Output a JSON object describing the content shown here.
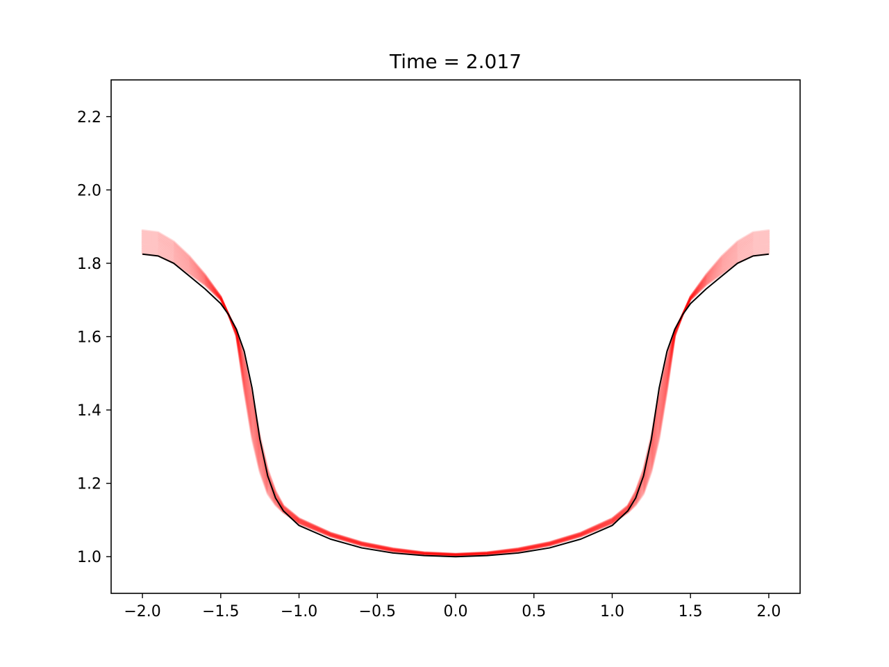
{
  "chart_data": {
    "type": "line",
    "title": "Time = 2.017",
    "xlabel": "",
    "ylabel": "",
    "xlim": [
      -2.2,
      2.2
    ],
    "ylim": [
      0.9,
      2.3
    ],
    "x_ticks": [
      -2.0,
      -1.5,
      -1.0,
      -0.5,
      0.0,
      0.5,
      1.0,
      1.5,
      2.0
    ],
    "x_tick_labels": [
      "−2.0",
      "−1.5",
      "−1.0",
      "−0.5",
      "0.0",
      "0.5",
      "1.0",
      "1.5",
      "2.0"
    ],
    "y_ticks": [
      1.0,
      1.2,
      1.4,
      1.6,
      1.8,
      2.0,
      2.2
    ],
    "y_tick_labels": [
      "1.0",
      "1.2",
      "1.4",
      "1.6",
      "1.8",
      "2.0",
      "2.2"
    ],
    "grid": false,
    "legend": "none",
    "colors": {
      "ensemble": "#ff0000",
      "reference": "#000000"
    },
    "series": [
      {
        "role": "ensemble-band",
        "color": "#ff0000",
        "x": [
          -2.0,
          -1.9,
          -1.8,
          -1.7,
          -1.6,
          -1.5,
          -1.45,
          -1.4,
          -1.35,
          -1.3,
          -1.25,
          -1.2,
          -1.15,
          -1.1,
          -1.0,
          -0.8,
          -0.6,
          -0.4,
          -0.2,
          0.0,
          0.2,
          0.4,
          0.6,
          0.8,
          1.0,
          1.1,
          1.15,
          1.2,
          1.25,
          1.3,
          1.35,
          1.4,
          1.45,
          1.5,
          1.6,
          1.7,
          1.8,
          1.9,
          2.0
        ],
        "upper": [
          1.89,
          1.885,
          1.86,
          1.82,
          1.77,
          1.71,
          1.66,
          1.62,
          1.55,
          1.45,
          1.33,
          1.24,
          1.18,
          1.14,
          1.105,
          1.066,
          1.04,
          1.023,
          1.012,
          1.008,
          1.012,
          1.023,
          1.04,
          1.066,
          1.105,
          1.14,
          1.18,
          1.24,
          1.33,
          1.45,
          1.55,
          1.62,
          1.66,
          1.71,
          1.77,
          1.82,
          1.86,
          1.885,
          1.89
        ],
        "lower": [
          1.825,
          1.82,
          1.8,
          1.77,
          1.74,
          1.7,
          1.66,
          1.6,
          1.45,
          1.32,
          1.23,
          1.17,
          1.14,
          1.12,
          1.09,
          1.055,
          1.03,
          1.014,
          1.006,
          1.003,
          1.006,
          1.014,
          1.03,
          1.055,
          1.09,
          1.12,
          1.14,
          1.17,
          1.23,
          1.32,
          1.45,
          1.6,
          1.66,
          1.7,
          1.74,
          1.77,
          1.8,
          1.82,
          1.825
        ]
      },
      {
        "role": "reference",
        "color": "#000000",
        "x": [
          -2.0,
          -1.9,
          -1.8,
          -1.7,
          -1.6,
          -1.5,
          -1.45,
          -1.4,
          -1.35,
          -1.3,
          -1.25,
          -1.2,
          -1.15,
          -1.1,
          -1.0,
          -0.8,
          -0.6,
          -0.4,
          -0.2,
          0.0,
          0.2,
          0.4,
          0.6,
          0.8,
          1.0,
          1.1,
          1.15,
          1.2,
          1.25,
          1.3,
          1.35,
          1.4,
          1.45,
          1.5,
          1.6,
          1.7,
          1.8,
          1.9,
          2.0
        ],
        "y": [
          1.825,
          1.82,
          1.8,
          1.765,
          1.73,
          1.69,
          1.66,
          1.62,
          1.56,
          1.46,
          1.32,
          1.22,
          1.16,
          1.125,
          1.085,
          1.048,
          1.024,
          1.01,
          1.003,
          1.0,
          1.003,
          1.01,
          1.024,
          1.048,
          1.085,
          1.125,
          1.16,
          1.22,
          1.32,
          1.46,
          1.56,
          1.62,
          1.66,
          1.69,
          1.73,
          1.765,
          1.8,
          1.82,
          1.825
        ]
      }
    ]
  }
}
